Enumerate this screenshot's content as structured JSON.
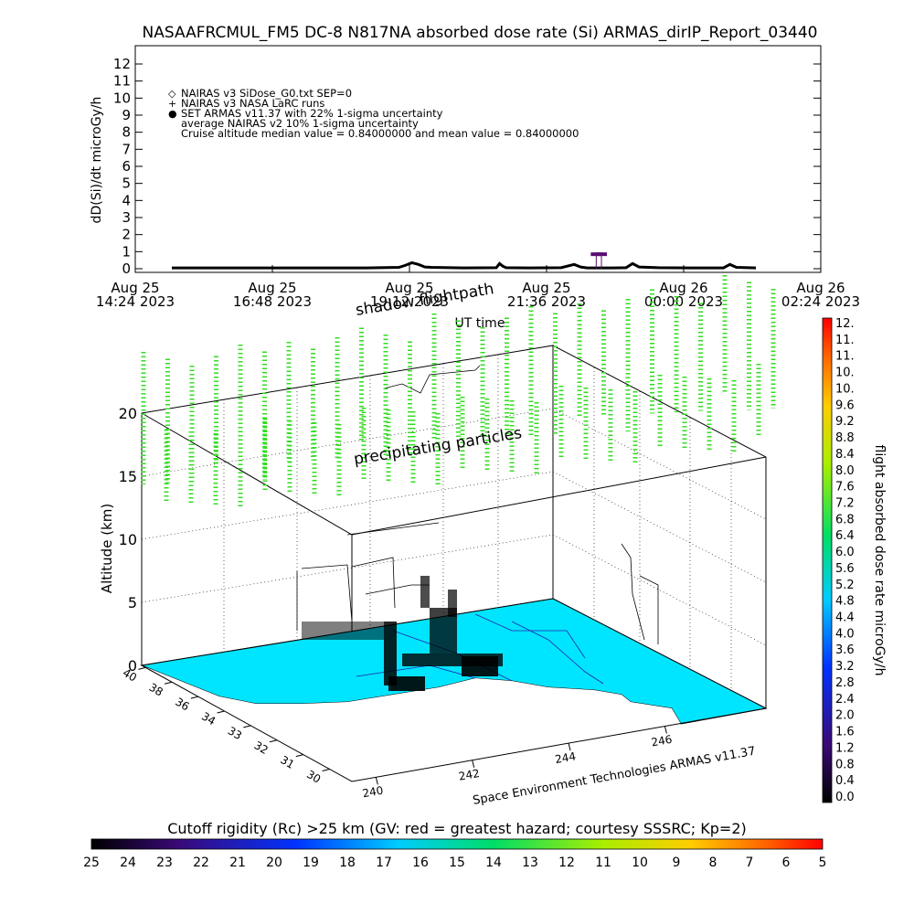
{
  "chart_data": [
    {
      "type": "line",
      "title": "NASAAFRCMUL_FM5 DC-8   N817NA absorbed dose rate (Si) ARMAS_dirIP_Report_03440",
      "ylabel": "dD(Si)/dt microGy/h",
      "xlabel": "UT time",
      "ylim": [
        0,
        12
      ],
      "yticks": [
        "0",
        "1",
        "2",
        "3",
        "4",
        "5",
        "6",
        "7",
        "8",
        "9",
        "10",
        "11",
        "12"
      ],
      "xticks": [
        {
          "line1": "Aug 25",
          "line2": "14:24 2023"
        },
        {
          "line1": "Aug 25",
          "line2": "16:48 2023"
        },
        {
          "line1": "Aug 25",
          "line2": "19:12 2023"
        },
        {
          "line1": "Aug 25",
          "line2": "21:36 2023"
        },
        {
          "line1": "Aug 26",
          "line2": "00:00 2023"
        },
        {
          "line1": "Aug 26",
          "line2": "02:24 2023"
        }
      ],
      "legend": [
        {
          "symbol": "◇",
          "text": "NAIRAS v3 SiDose_G0.txt SEP=0"
        },
        {
          "symbol": "+",
          "text": "NAIRAS v3 NASA LaRC runs"
        },
        {
          "symbol": "●",
          "text": "SET ARMAS v11.37 with 22% 1-sigma uncertainty"
        },
        {
          "symbol": "",
          "text": "average NAIRAS v2 10% 1-sigma uncertainty"
        },
        {
          "symbol": "",
          "text": "Cruise altitude median value = 0.84000000 and mean value = 0.84000000"
        }
      ],
      "series": [
        {
          "x": [
            0,
            0.1,
            0.2,
            0.3,
            0.35,
            0.36,
            0.37,
            0.38,
            0.39,
            0.4,
            0.45,
            0.5,
            0.505,
            0.51,
            0.515,
            0.55,
            0.6,
            0.62,
            0.63,
            0.64,
            0.68,
            0.7,
            0.71,
            0.72,
            0.75,
            0.8,
            0.85,
            0.86,
            0.87,
            0.9
          ],
          "values": [
            0.05,
            0.05,
            0.05,
            0.05,
            0.08,
            0.2,
            0.35,
            0.25,
            0.1,
            0.08,
            0.05,
            0.06,
            0.3,
            0.15,
            0.06,
            0.05,
            0.06,
            0.25,
            0.1,
            0.05,
            0.05,
            0.06,
            0.3,
            0.1,
            0.06,
            0.05,
            0.05,
            0.25,
            0.08,
            0.05
          ],
          "point_color": "#000000"
        },
        {
          "x": [
            0.654,
            0.662
          ],
          "values": [
            0.85,
            0.85
          ],
          "point_color": "#5b0d74"
        }
      ]
    },
    {
      "type": "scatter",
      "zlabel": "Altitude (km)",
      "zticks": [
        "0",
        "5",
        "10",
        "15",
        "20"
      ],
      "lat_ticks": [
        "40",
        "38",
        "36",
        "34",
        "33",
        "32",
        "31",
        "30"
      ],
      "lon_ticks": [
        "240",
        "242",
        "244",
        "246"
      ],
      "annotations": [
        "shadow flightpath",
        "precipitating particles",
        "Space Environment Technologies ARMAS v11.37"
      ],
      "map_color": "#00e5ff",
      "particle_color": "#33dd22"
    },
    {
      "type": "heatmap",
      "title": "flight absorbed dose rate microGy/h",
      "colorbar_labels": [
        "12.",
        "11.",
        "11.",
        "10.",
        "10.",
        "9.6",
        "9.2",
        "8.8",
        "8.4",
        "8.0",
        "7.6",
        "7.2",
        "6.8",
        "6.4",
        "6.0",
        "5.6",
        "5.2",
        "4.8",
        "4.4",
        "4.0",
        "3.6",
        "3.2",
        "2.8",
        "2.4",
        "2.0",
        "1.6",
        "1.2",
        "0.8",
        "0.4",
        "0.0"
      ]
    },
    {
      "type": "heatmap",
      "title": "Cutoff rigidity (Rc) >25 km (GV: red = greatest hazard; courtesy SSSRC; Kp=2)",
      "colorbar_labels": [
        "25",
        "24",
        "23",
        "22",
        "21",
        "20",
        "19",
        "18",
        "17",
        "16",
        "15",
        "14",
        "13",
        "12",
        "11",
        "10",
        "9",
        "8",
        "7",
        "6",
        "5"
      ]
    }
  ]
}
